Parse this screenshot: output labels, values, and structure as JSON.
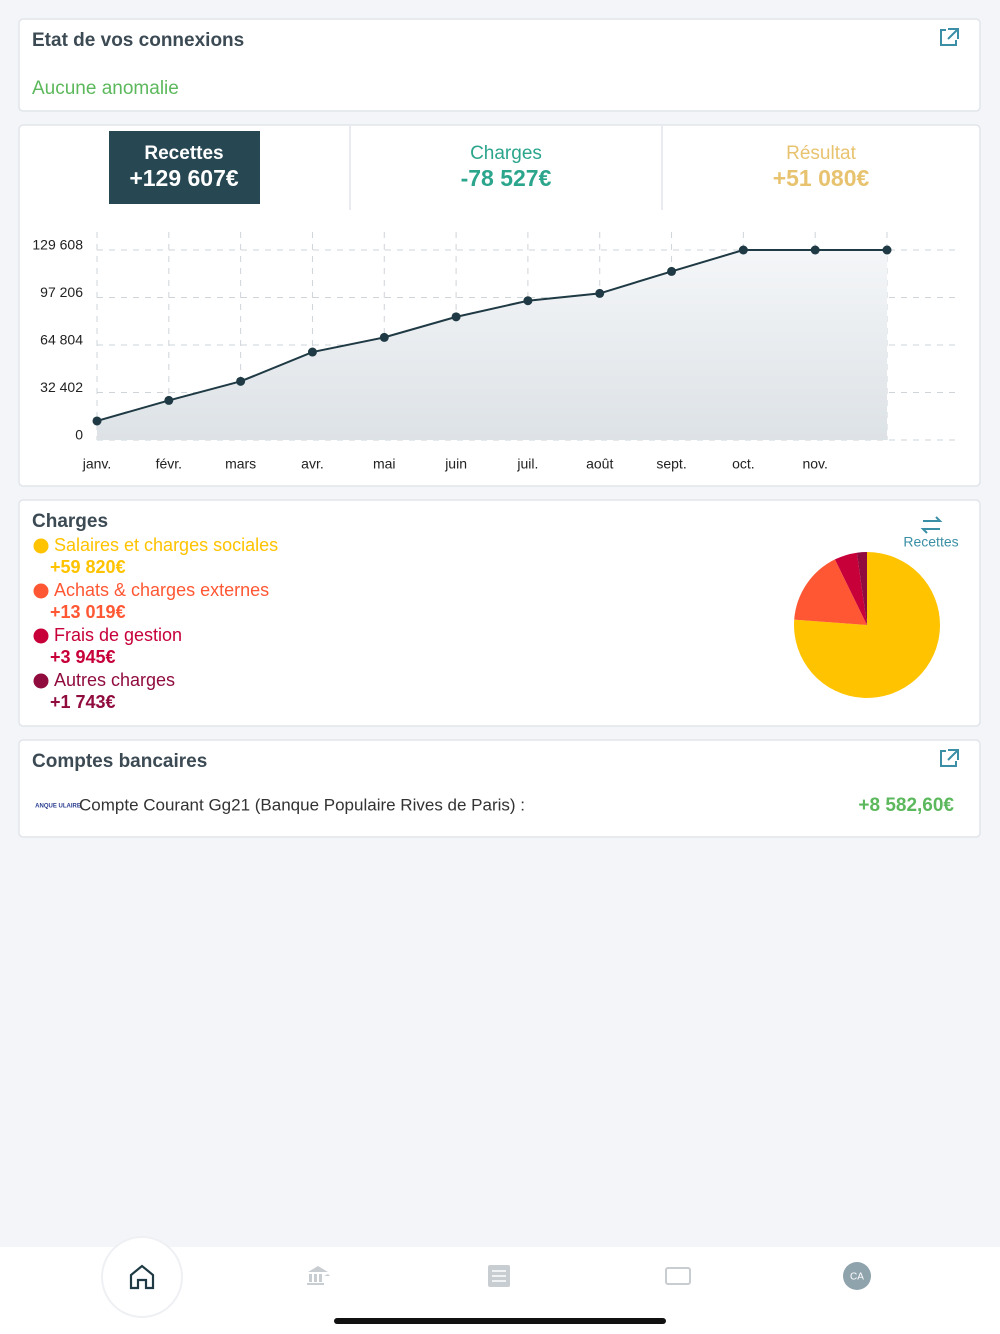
{
  "connections": {
    "title": "Etat de vos connexions",
    "status": "Aucune anomalie"
  },
  "summary": {
    "tabs": [
      {
        "label": "Recettes",
        "value": "+129 607€"
      },
      {
        "label": "Charges",
        "value": "-78 527€"
      },
      {
        "label": "Résultat",
        "value": "+51 080€"
      }
    ]
  },
  "chart_data": [
    {
      "type": "line",
      "categories": [
        "janv.",
        "févr.",
        "mars",
        "avr.",
        "mai",
        "juin",
        "juil.",
        "août",
        "sept.",
        "oct.",
        "nov.",
        null
      ],
      "series": [
        {
          "color": "#1f3a44",
          "values": [
            13000,
            27000,
            40000,
            60000,
            70000,
            84000,
            95000,
            100000,
            115000,
            129607,
            129607,
            129607
          ]
        }
      ],
      "ylim": [
        0,
        129608
      ],
      "yticks": [
        0,
        {
          "value": 32402,
          "label": "32 402"
        },
        {
          "value": 64804,
          "label": "64 804"
        },
        {
          "value": 97206,
          "label": "97 206"
        },
        {
          "value": 129608,
          "label": "129 608"
        }
      ],
      "grid": true
    },
    {
      "type": "pie",
      "title": "Charges",
      "toggle": "Recettes",
      "categories": [
        "Salaires et charges sociales",
        "Achats & charges externes",
        "Frais de gestion",
        "Autres charges"
      ],
      "values": [
        59820,
        13019,
        3945,
        1743
      ],
      "value_labels": [
        "+59 820€",
        "+13 019€",
        "+3 945€",
        "+1 743€"
      ],
      "colors": [
        "#ffc300",
        "#ff5733",
        "#c70039",
        "#900c3f"
      ]
    }
  ],
  "accounts": {
    "title": "Comptes bancaires",
    "items": [
      {
        "logo": "ANQUE ULAIRE",
        "name": "Compte Courant Gg21 (Banque Populaire Rives de Paris) :",
        "balance": "+8 582,60€"
      }
    ]
  },
  "nav": {
    "avatar": "CA"
  }
}
